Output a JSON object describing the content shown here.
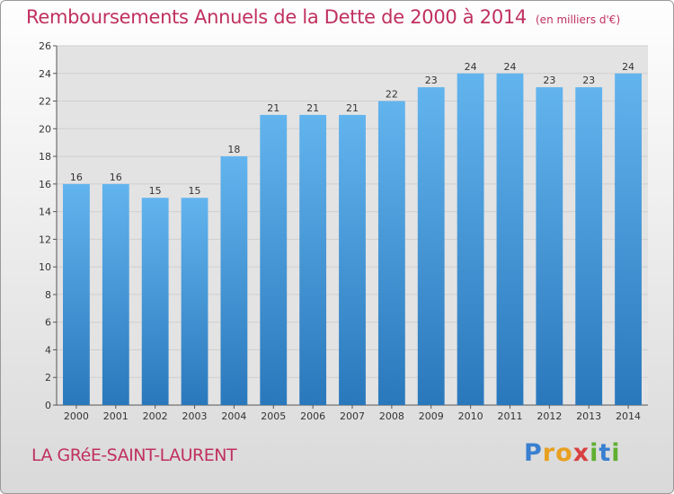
{
  "header": {
    "title": "Remboursements Annuels de la Dette de 2000 à 2014",
    "unit": "(en milliers d'€)"
  },
  "footer": {
    "commune": "LA GRéE-SAINT-LAURENT",
    "logo_letters": [
      "P",
      "r",
      "o",
      "x",
      "i",
      "t",
      "i"
    ],
    "logo": "Proxiti"
  },
  "colors": {
    "bar_light": "#62b4ee",
    "bar_dark": "#2a78bc",
    "accent": "#c0305e",
    "logo": [
      "#3a7fd0",
      "#e8a020",
      "#e8a020",
      "#d84040",
      "#60b030",
      "#3a7fd0",
      "#60b030"
    ]
  },
  "chart_data": {
    "type": "bar",
    "title": "Remboursements Annuels de la Dette de 2000 à 2014",
    "subtitle": "(en milliers d'€)",
    "categories": [
      "2000",
      "2001",
      "2002",
      "2003",
      "2004",
      "2005",
      "2006",
      "2007",
      "2008",
      "2009",
      "2010",
      "2011",
      "2012",
      "2013",
      "2014"
    ],
    "values": [
      16,
      16,
      15,
      15,
      18,
      21,
      21,
      21,
      22,
      23,
      24,
      24,
      23,
      23,
      24
    ],
    "labels": [
      "16",
      "16",
      "15",
      "15",
      "18",
      "21",
      "21",
      "21",
      "22",
      "23",
      "24",
      "24",
      "23",
      "23",
      "24"
    ],
    "yticks": [
      "0",
      "2",
      "4",
      "6",
      "8",
      "10",
      "12",
      "14",
      "16",
      "18",
      "20",
      "22",
      "24",
      "26"
    ],
    "ylim": [
      0,
      26
    ],
    "xlabel": "",
    "ylabel": "",
    "grid": true
  }
}
